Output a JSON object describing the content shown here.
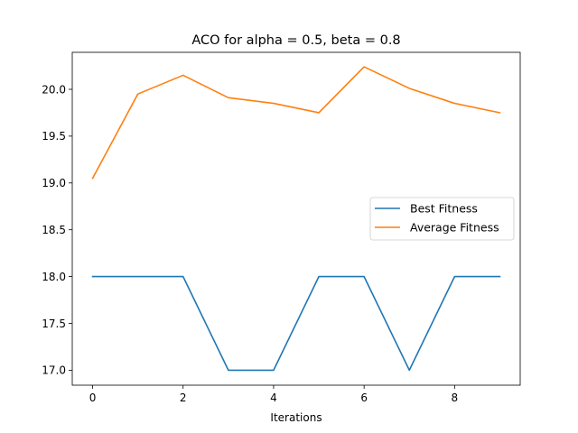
{
  "chart_data": {
    "type": "line",
    "title": "ACO for alpha = 0.5, beta = 0.8",
    "xlabel": "Iterations",
    "ylabel": "",
    "x": [
      0,
      1,
      2,
      3,
      4,
      5,
      6,
      7,
      8,
      9
    ],
    "xlim": [
      -0.45,
      9.45
    ],
    "ylim": [
      16.84,
      20.395
    ],
    "xticks": [
      0,
      2,
      4,
      6,
      8
    ],
    "xtick_labels": [
      "0",
      "2",
      "4",
      "6",
      "8"
    ],
    "yticks": [
      17.0,
      17.5,
      18.0,
      18.5,
      19.0,
      19.5,
      20.0
    ],
    "ytick_labels": [
      "17.0",
      "17.5",
      "18.0",
      "18.5",
      "19.0",
      "19.5",
      "20.0"
    ],
    "grid": false,
    "legend_position": "center-right",
    "series": [
      {
        "name": "Best Fitness",
        "color": "#1f77b4",
        "values": [
          18,
          18,
          18,
          17,
          17,
          18,
          18,
          17,
          18,
          18
        ]
      },
      {
        "name": "Average Fitness",
        "color": "#ff7f0e",
        "values": [
          19.05,
          19.95,
          20.15,
          19.91,
          19.85,
          19.75,
          20.24,
          20.01,
          19.85,
          19.75
        ]
      }
    ]
  }
}
